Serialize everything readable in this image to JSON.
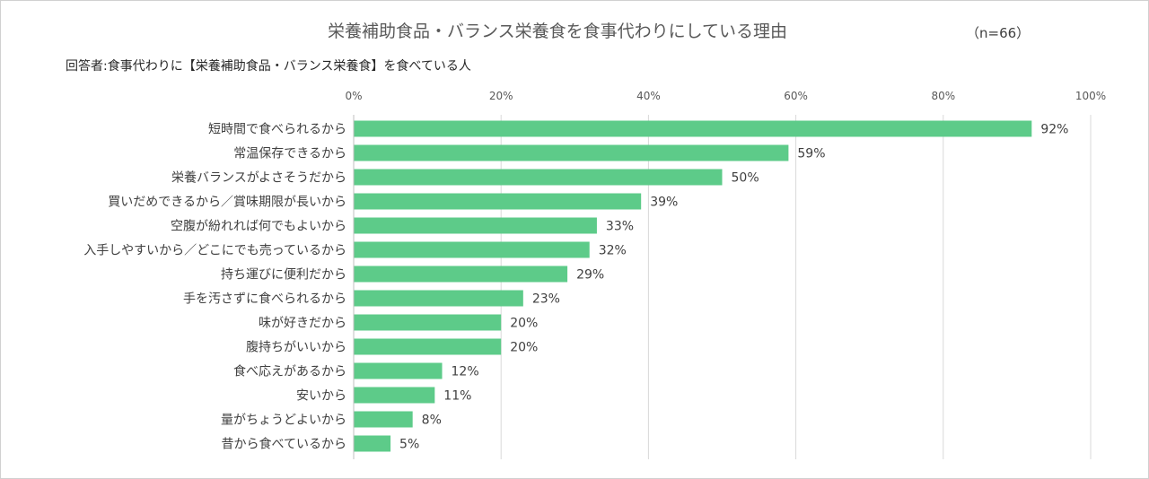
{
  "title": "栄養補助食品・バランス栄養食を食事代わりにしている理由",
  "sample_size": "（n=66）",
  "respondents": "回答者:食事代わりに【栄養補助食品・バランス栄養食】を食べている人",
  "colors": {
    "bar": "#5dcb89",
    "grid": "#d9d9d9",
    "text": "#404040"
  },
  "chart_data": {
    "type": "bar",
    "orientation": "horizontal",
    "categories": [
      "短時間で食べられるから",
      "常温保存できるから",
      "栄養バランスがよさそうだから",
      "買いだめできるから／賞味期限が長いから",
      "空腹が紛れれば何でもよいから",
      "入手しやすいから／どこにでも売っているから",
      "持ち運びに便利だから",
      "手を汚さずに食べられるから",
      "味が好きだから",
      "腹持ちがいいから",
      "食べ応えがあるから",
      "安いから",
      "量がちょうどよいから",
      "昔から食べているから"
    ],
    "values": [
      92,
      59,
      50,
      39,
      33,
      32,
      29,
      23,
      20,
      20,
      12,
      11,
      8,
      5
    ],
    "value_labels": [
      "92%",
      "59%",
      "50%",
      "39%",
      "33%",
      "32%",
      "29%",
      "23%",
      "20%",
      "20%",
      "12%",
      "11%",
      "8%",
      "5%"
    ],
    "xlim": [
      0,
      100
    ],
    "ticks": [
      0,
      20,
      40,
      60,
      80,
      100
    ],
    "tick_labels": [
      "0%",
      "20%",
      "40%",
      "60%",
      "80%",
      "100%"
    ],
    "axis_position": "top",
    "grid": true,
    "legend": false
  }
}
